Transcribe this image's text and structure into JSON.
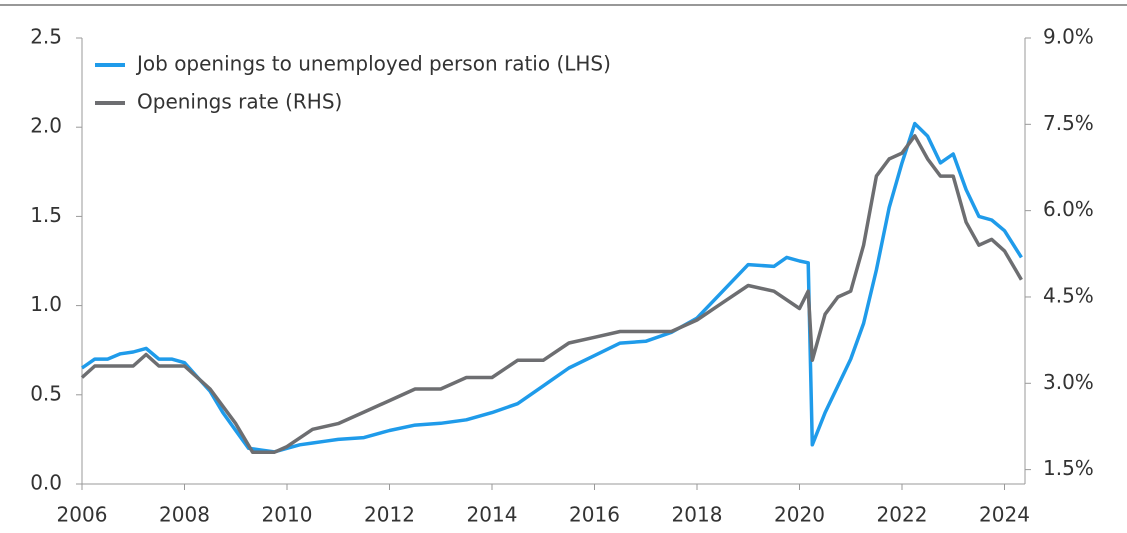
{
  "chart_data": {
    "type": "line",
    "xlim": [
      2006,
      2024.4
    ],
    "xticks": [
      2006,
      2008,
      2010,
      2012,
      2014,
      2016,
      2018,
      2020,
      2022,
      2024
    ],
    "ylim": [
      0,
      2.5
    ],
    "yticks": [
      {
        "value": 0,
        "label": "0.0"
      },
      0.5,
      {
        "value": 1,
        "label": "1.0"
      },
      1.5,
      {
        "value": 2,
        "label": "2.0"
      },
      2.5
    ],
    "y2lim": [
      1.25,
      9.0
    ],
    "y2ticks": [
      {
        "value": 1.5,
        "label": "1.5%"
      },
      {
        "value": 3,
        "label": "3.0%"
      },
      {
        "value": 4.5,
        "label": "4.5%"
      },
      {
        "value": 6,
        "label": "6.0%"
      },
      {
        "value": 7.5,
        "label": "7.5%"
      },
      {
        "value": 9,
        "label": "9.0%"
      }
    ],
    "legend": "upper left",
    "series": [
      {
        "name": "Job openings to unemployed person ratio (LHS)",
        "color": "#1f9bea",
        "x": [
          2006.0,
          2006.25,
          2006.5,
          2006.75,
          2007.0,
          2007.25,
          2007.5,
          2007.75,
          2008.0,
          2008.25,
          2008.5,
          2008.75,
          2009.0,
          2009.25,
          2009.5,
          2009.75,
          2010.0,
          2010.25,
          2010.5,
          2010.75,
          2011.0,
          2011.5,
          2012.0,
          2012.5,
          2013.0,
          2013.5,
          2014.0,
          2014.5,
          2015.0,
          2015.5,
          2016.0,
          2016.5,
          2017.0,
          2017.5,
          2018.0,
          2018.5,
          2019.0,
          2019.5,
          2019.75,
          2020.0,
          2020.17,
          2020.25,
          2020.5,
          2020.75,
          2021.0,
          2021.25,
          2021.5,
          2021.75,
          2022.0,
          2022.25,
          2022.5,
          2022.75,
          2023.0,
          2023.25,
          2023.5,
          2023.75,
          2024.0,
          2024.33
        ],
        "values": [
          0.65,
          0.7,
          0.7,
          0.73,
          0.74,
          0.76,
          0.7,
          0.7,
          0.68,
          0.6,
          0.52,
          0.4,
          0.3,
          0.2,
          0.19,
          0.18,
          0.2,
          0.22,
          0.23,
          0.24,
          0.25,
          0.26,
          0.3,
          0.33,
          0.34,
          0.36,
          0.4,
          0.45,
          0.55,
          0.65,
          0.72,
          0.79,
          0.8,
          0.85,
          0.93,
          1.08,
          1.23,
          1.22,
          1.27,
          1.25,
          1.24,
          0.22,
          0.4,
          0.55,
          0.7,
          0.9,
          1.2,
          1.55,
          1.8,
          2.02,
          1.95,
          1.8,
          1.85,
          1.65,
          1.5,
          1.48,
          1.42,
          1.27
        ]
      },
      {
        "name": "Openings rate (RHS)",
        "color": "#6d6e71",
        "axis": "y2",
        "x": [
          2006.0,
          2006.25,
          2007.0,
          2007.25,
          2007.5,
          2008.0,
          2008.5,
          2009.0,
          2009.33,
          2009.75,
          2010.0,
          2010.5,
          2011.0,
          2011.5,
          2012.0,
          2012.5,
          2013.0,
          2013.5,
          2014.0,
          2014.5,
          2015.0,
          2015.5,
          2016.0,
          2016.5,
          2017.0,
          2017.5,
          2018.0,
          2018.5,
          2019.0,
          2019.5,
          2020.0,
          2020.17,
          2020.25,
          2020.5,
          2020.75,
          2021.0,
          2021.25,
          2021.5,
          2021.75,
          2022.0,
          2022.25,
          2022.5,
          2022.75,
          2023.0,
          2023.25,
          2023.5,
          2023.75,
          2024.0,
          2024.33
        ],
        "values": [
          3.1,
          3.3,
          3.3,
          3.5,
          3.3,
          3.3,
          2.9,
          2.3,
          1.8,
          1.8,
          1.9,
          2.2,
          2.3,
          2.5,
          2.7,
          2.9,
          2.9,
          3.1,
          3.1,
          3.4,
          3.4,
          3.7,
          3.8,
          3.9,
          3.9,
          3.9,
          4.1,
          4.4,
          4.7,
          4.6,
          4.3,
          4.6,
          3.4,
          4.2,
          4.5,
          4.6,
          5.4,
          6.6,
          6.9,
          7.0,
          7.3,
          6.9,
          6.6,
          6.6,
          5.8,
          5.4,
          5.5,
          5.3,
          4.8
        ]
      }
    ]
  }
}
